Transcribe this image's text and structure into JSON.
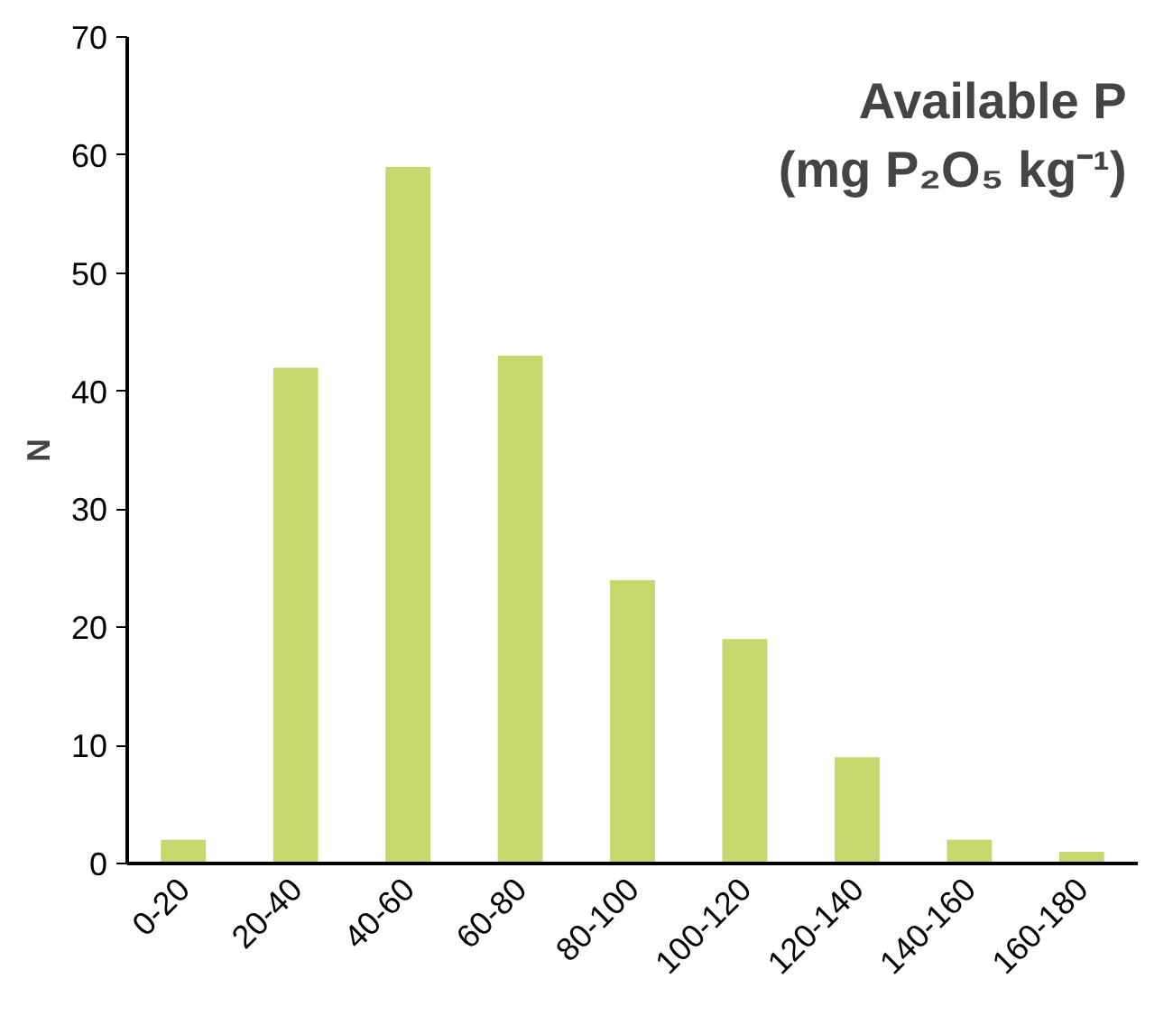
{
  "chart_data": {
    "type": "bar",
    "title": "Available P\n(mg P₂O₅ kg⁻¹)",
    "ylabel": "N",
    "categories": [
      "0-20",
      "20-40",
      "40-60",
      "60-80",
      "80-100",
      "100-120",
      "120-140",
      "140-160",
      "160-180"
    ],
    "values": [
      2,
      42,
      59,
      43,
      24,
      19,
      9,
      2,
      1
    ],
    "color": "#c5d86d",
    "ylim": [
      0,
      70
    ],
    "yticks": [
      0,
      10,
      20,
      30,
      40,
      50,
      60,
      70
    ],
    "grid": false
  }
}
